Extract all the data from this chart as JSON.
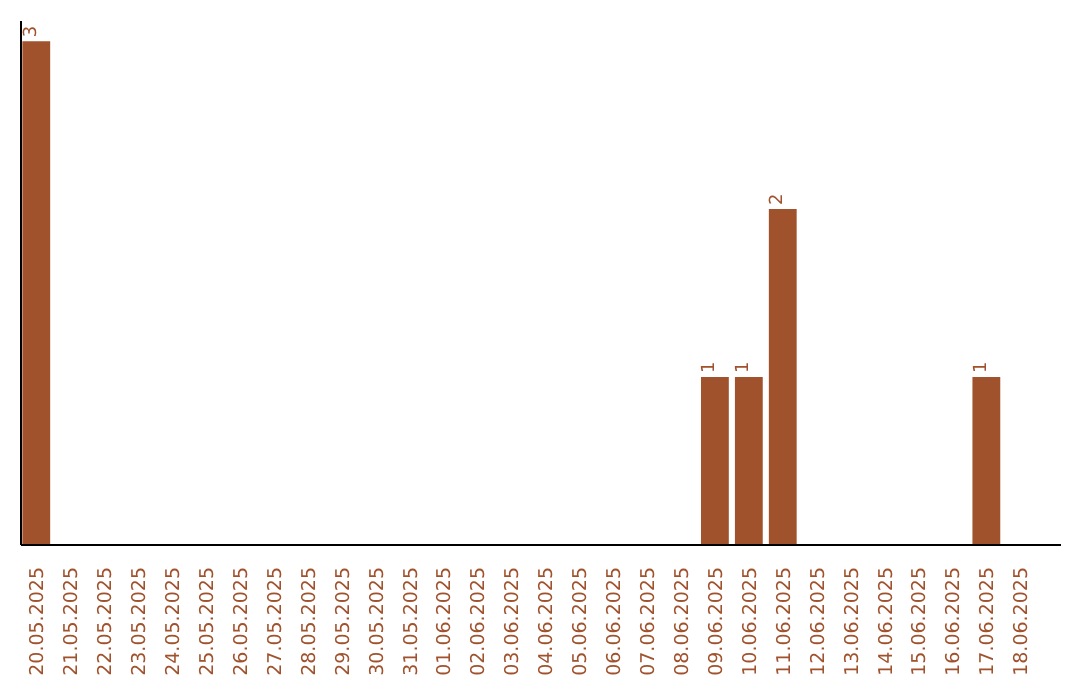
{
  "chart_data": {
    "type": "bar",
    "categories": [
      "20.05.2025",
      "21.05.2025",
      "22.05.2025",
      "23.05.2025",
      "24.05.2025",
      "25.05.2025",
      "26.05.2025",
      "27.05.2025",
      "28.05.2025",
      "29.05.2025",
      "30.05.2025",
      "31.05.2025",
      "01.06.2025",
      "02.06.2025",
      "03.06.2025",
      "04.06.2025",
      "05.06.2025",
      "06.06.2025",
      "07.06.2025",
      "08.06.2025",
      "09.06.2025",
      "10.06.2025",
      "11.06.2025",
      "12.06.2025",
      "13.06.2025",
      "14.06.2025",
      "15.06.2025",
      "16.06.2025",
      "17.06.2025",
      "18.06.2025"
    ],
    "values": [
      3,
      0,
      0,
      0,
      0,
      0,
      0,
      0,
      0,
      0,
      0,
      0,
      0,
      0,
      0,
      0,
      0,
      0,
      0,
      0,
      1,
      1,
      2,
      0,
      0,
      0,
      0,
      0,
      1,
      0
    ],
    "color": "#a0522d",
    "value_labels": [
      "3",
      null,
      null,
      null,
      null,
      null,
      null,
      null,
      null,
      null,
      null,
      null,
      null,
      null,
      null,
      null,
      null,
      null,
      null,
      null,
      "1",
      "1",
      "2",
      null,
      null,
      null,
      null,
      null,
      "1",
      null
    ],
    "grid": false,
    "tick_labels": "x"
  }
}
